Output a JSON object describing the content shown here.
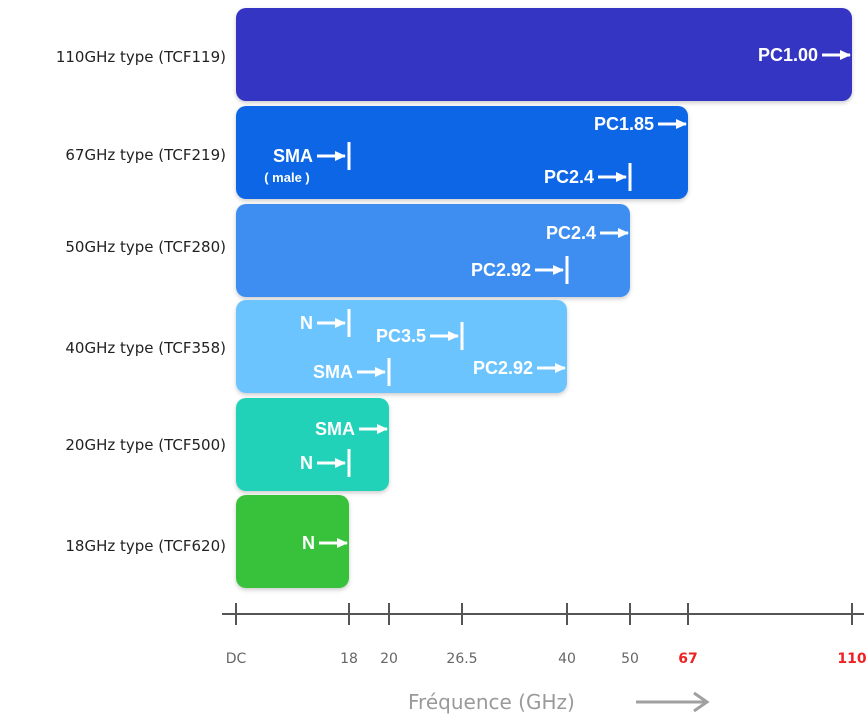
{
  "chart_data": {
    "type": "bar",
    "orientation": "horizontal",
    "xlabel": "Fréquence (GHz)",
    "xticks": [
      {
        "value": 0,
        "label": "DC",
        "highlight": false
      },
      {
        "value": 18,
        "label": "18",
        "highlight": false
      },
      {
        "value": 20,
        "label": "20",
        "highlight": false
      },
      {
        "value": 26.5,
        "label": "26.5",
        "highlight": false
      },
      {
        "value": 40,
        "label": "40",
        "highlight": false
      },
      {
        "value": 50,
        "label": "50",
        "highlight": false
      },
      {
        "value": 67,
        "label": "67",
        "highlight": true
      },
      {
        "value": 110,
        "label": "110",
        "highlight": true
      }
    ],
    "bars": [
      {
        "label": "110GHz type (TCF119)",
        "max": 110,
        "color": "#3434c4",
        "connectors": [
          {
            "name": "PC1.00",
            "freq": 110,
            "marker": "arrow"
          }
        ]
      },
      {
        "label": "67GHz type (TCF219)",
        "max": 67,
        "color": "#0866e6",
        "connectors": [
          {
            "name": "SMA",
            "sub": "( male )",
            "freq": 18,
            "marker": "bar"
          },
          {
            "name": "PC1.85",
            "freq": 67,
            "marker": "arrow"
          },
          {
            "name": "PC2.4",
            "freq": 50,
            "marker": "bar"
          }
        ]
      },
      {
        "label": "50GHz type (TCF280)",
        "max": 50,
        "color": "#3d8ef0",
        "connectors": [
          {
            "name": "PC2.4",
            "freq": 50,
            "marker": "arrow"
          },
          {
            "name": "PC2.92",
            "freq": 40,
            "marker": "bar"
          }
        ]
      },
      {
        "label": "40GHz type (TCF358)",
        "max": 40,
        "color": "#6cc4ff",
        "connectors": [
          {
            "name": "N",
            "freq": 18,
            "marker": "bar"
          },
          {
            "name": "PC3.5",
            "freq": 26.5,
            "marker": "bar"
          },
          {
            "name": "SMA",
            "freq": 20,
            "marker": "bar"
          },
          {
            "name": "PC2.92",
            "freq": 40,
            "marker": "arrow"
          }
        ]
      },
      {
        "label": "20GHz type (TCF500)",
        "max": 20,
        "color": "#22d2b8",
        "connectors": [
          {
            "name": "SMA",
            "freq": 20,
            "marker": "arrow"
          },
          {
            "name": "N",
            "freq": 18,
            "marker": "bar"
          }
        ]
      },
      {
        "label": "18GHz type (TCF620)",
        "max": 18,
        "color": "#38c23a",
        "connectors": [
          {
            "name": "N",
            "freq": 18,
            "marker": "arrow"
          }
        ]
      }
    ]
  }
}
